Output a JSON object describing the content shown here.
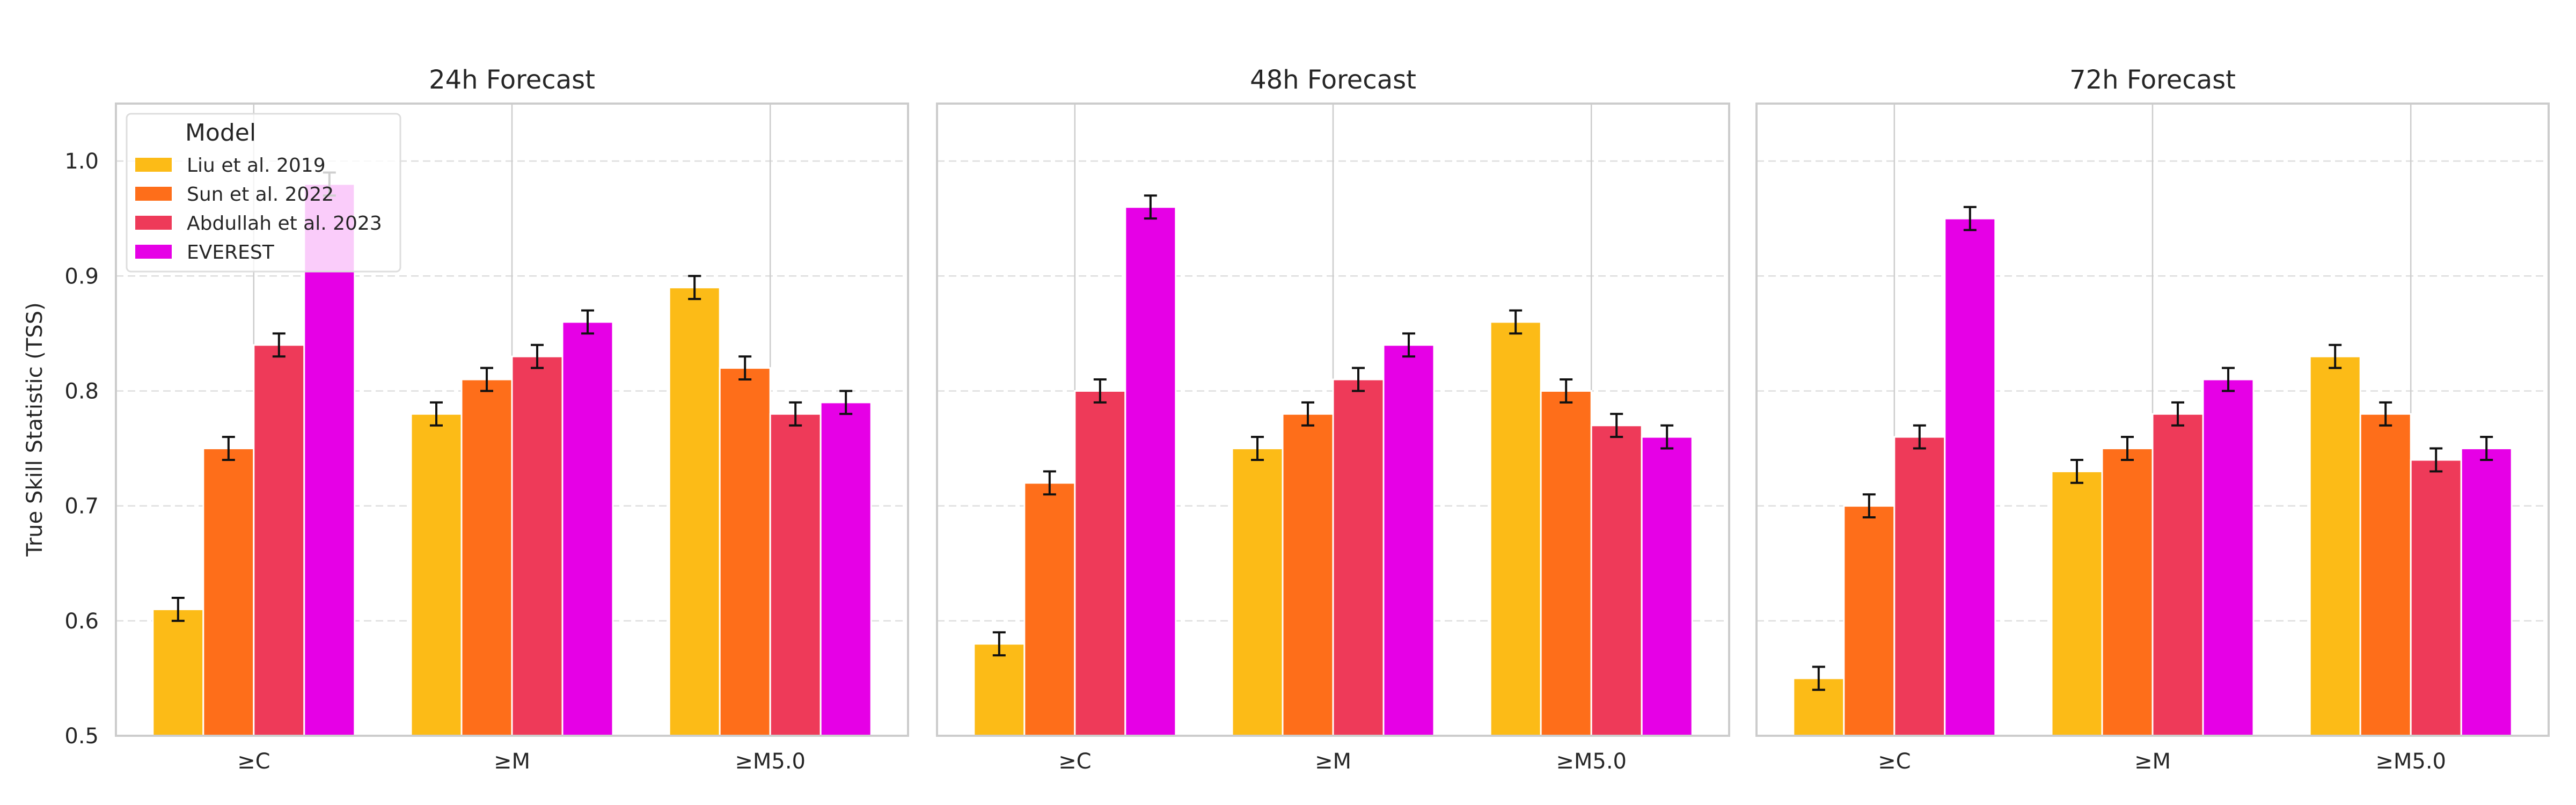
{
  "chart_data": {
    "type": "bar",
    "ylabel": "True Skill Statistic (TSS)",
    "ylim": [
      0.5,
      1.05
    ],
    "yticks": [
      "0.5",
      "0.6",
      "0.7",
      "0.8",
      "0.9",
      "1.0"
    ],
    "categories": [
      "≥C",
      "≥M",
      "≥M5.0"
    ],
    "grid": "y dashed, x solid at category centers",
    "legend": {
      "title": "Model",
      "placement": "top-left of first panel",
      "entries": [
        "Liu et al. 2019",
        "Sun et al. 2022",
        "Abdullah et al. 2023",
        "EVEREST"
      ]
    },
    "colors": [
      "#fcbb17",
      "#fe6e1a",
      "#ee3a59",
      "#e600e6"
    ],
    "panels": [
      {
        "title": "24h Forecast",
        "series": [
          {
            "name": "Liu et al. 2019",
            "values": [
              0.61,
              0.78,
              0.89
            ],
            "errors": [
              0.01,
              0.01,
              0.01
            ]
          },
          {
            "name": "Sun et al. 2022",
            "values": [
              0.75,
              0.81,
              0.82
            ],
            "errors": [
              0.01,
              0.01,
              0.01
            ]
          },
          {
            "name": "Abdullah et al. 2023",
            "values": [
              0.84,
              0.83,
              0.78
            ],
            "errors": [
              0.01,
              0.01,
              0.01
            ]
          },
          {
            "name": "EVEREST",
            "values": [
              0.98,
              0.86,
              0.79
            ],
            "errors": [
              0.01,
              0.01,
              0.01
            ]
          }
        ]
      },
      {
        "title": "48h Forecast",
        "series": [
          {
            "name": "Liu et al. 2019",
            "values": [
              0.58,
              0.75,
              0.86
            ],
            "errors": [
              0.01,
              0.01,
              0.01
            ]
          },
          {
            "name": "Sun et al. 2022",
            "values": [
              0.72,
              0.78,
              0.8
            ],
            "errors": [
              0.01,
              0.01,
              0.01
            ]
          },
          {
            "name": "Abdullah et al. 2023",
            "values": [
              0.8,
              0.81,
              0.77
            ],
            "errors": [
              0.01,
              0.01,
              0.01
            ]
          },
          {
            "name": "EVEREST",
            "values": [
              0.96,
              0.84,
              0.76
            ],
            "errors": [
              0.01,
              0.01,
              0.01
            ]
          }
        ]
      },
      {
        "title": "72h Forecast",
        "series": [
          {
            "name": "Liu et al. 2019",
            "values": [
              0.55,
              0.73,
              0.83
            ],
            "errors": [
              0.01,
              0.01,
              0.01
            ]
          },
          {
            "name": "Sun et al. 2022",
            "values": [
              0.7,
              0.75,
              0.78
            ],
            "errors": [
              0.01,
              0.01,
              0.01
            ]
          },
          {
            "name": "Abdullah et al. 2023",
            "values": [
              0.76,
              0.78,
              0.74
            ],
            "errors": [
              0.01,
              0.01,
              0.01
            ]
          },
          {
            "name": "EVEREST",
            "values": [
              0.95,
              0.81,
              0.75
            ],
            "errors": [
              0.01,
              0.01,
              0.01
            ]
          }
        ]
      }
    ]
  }
}
